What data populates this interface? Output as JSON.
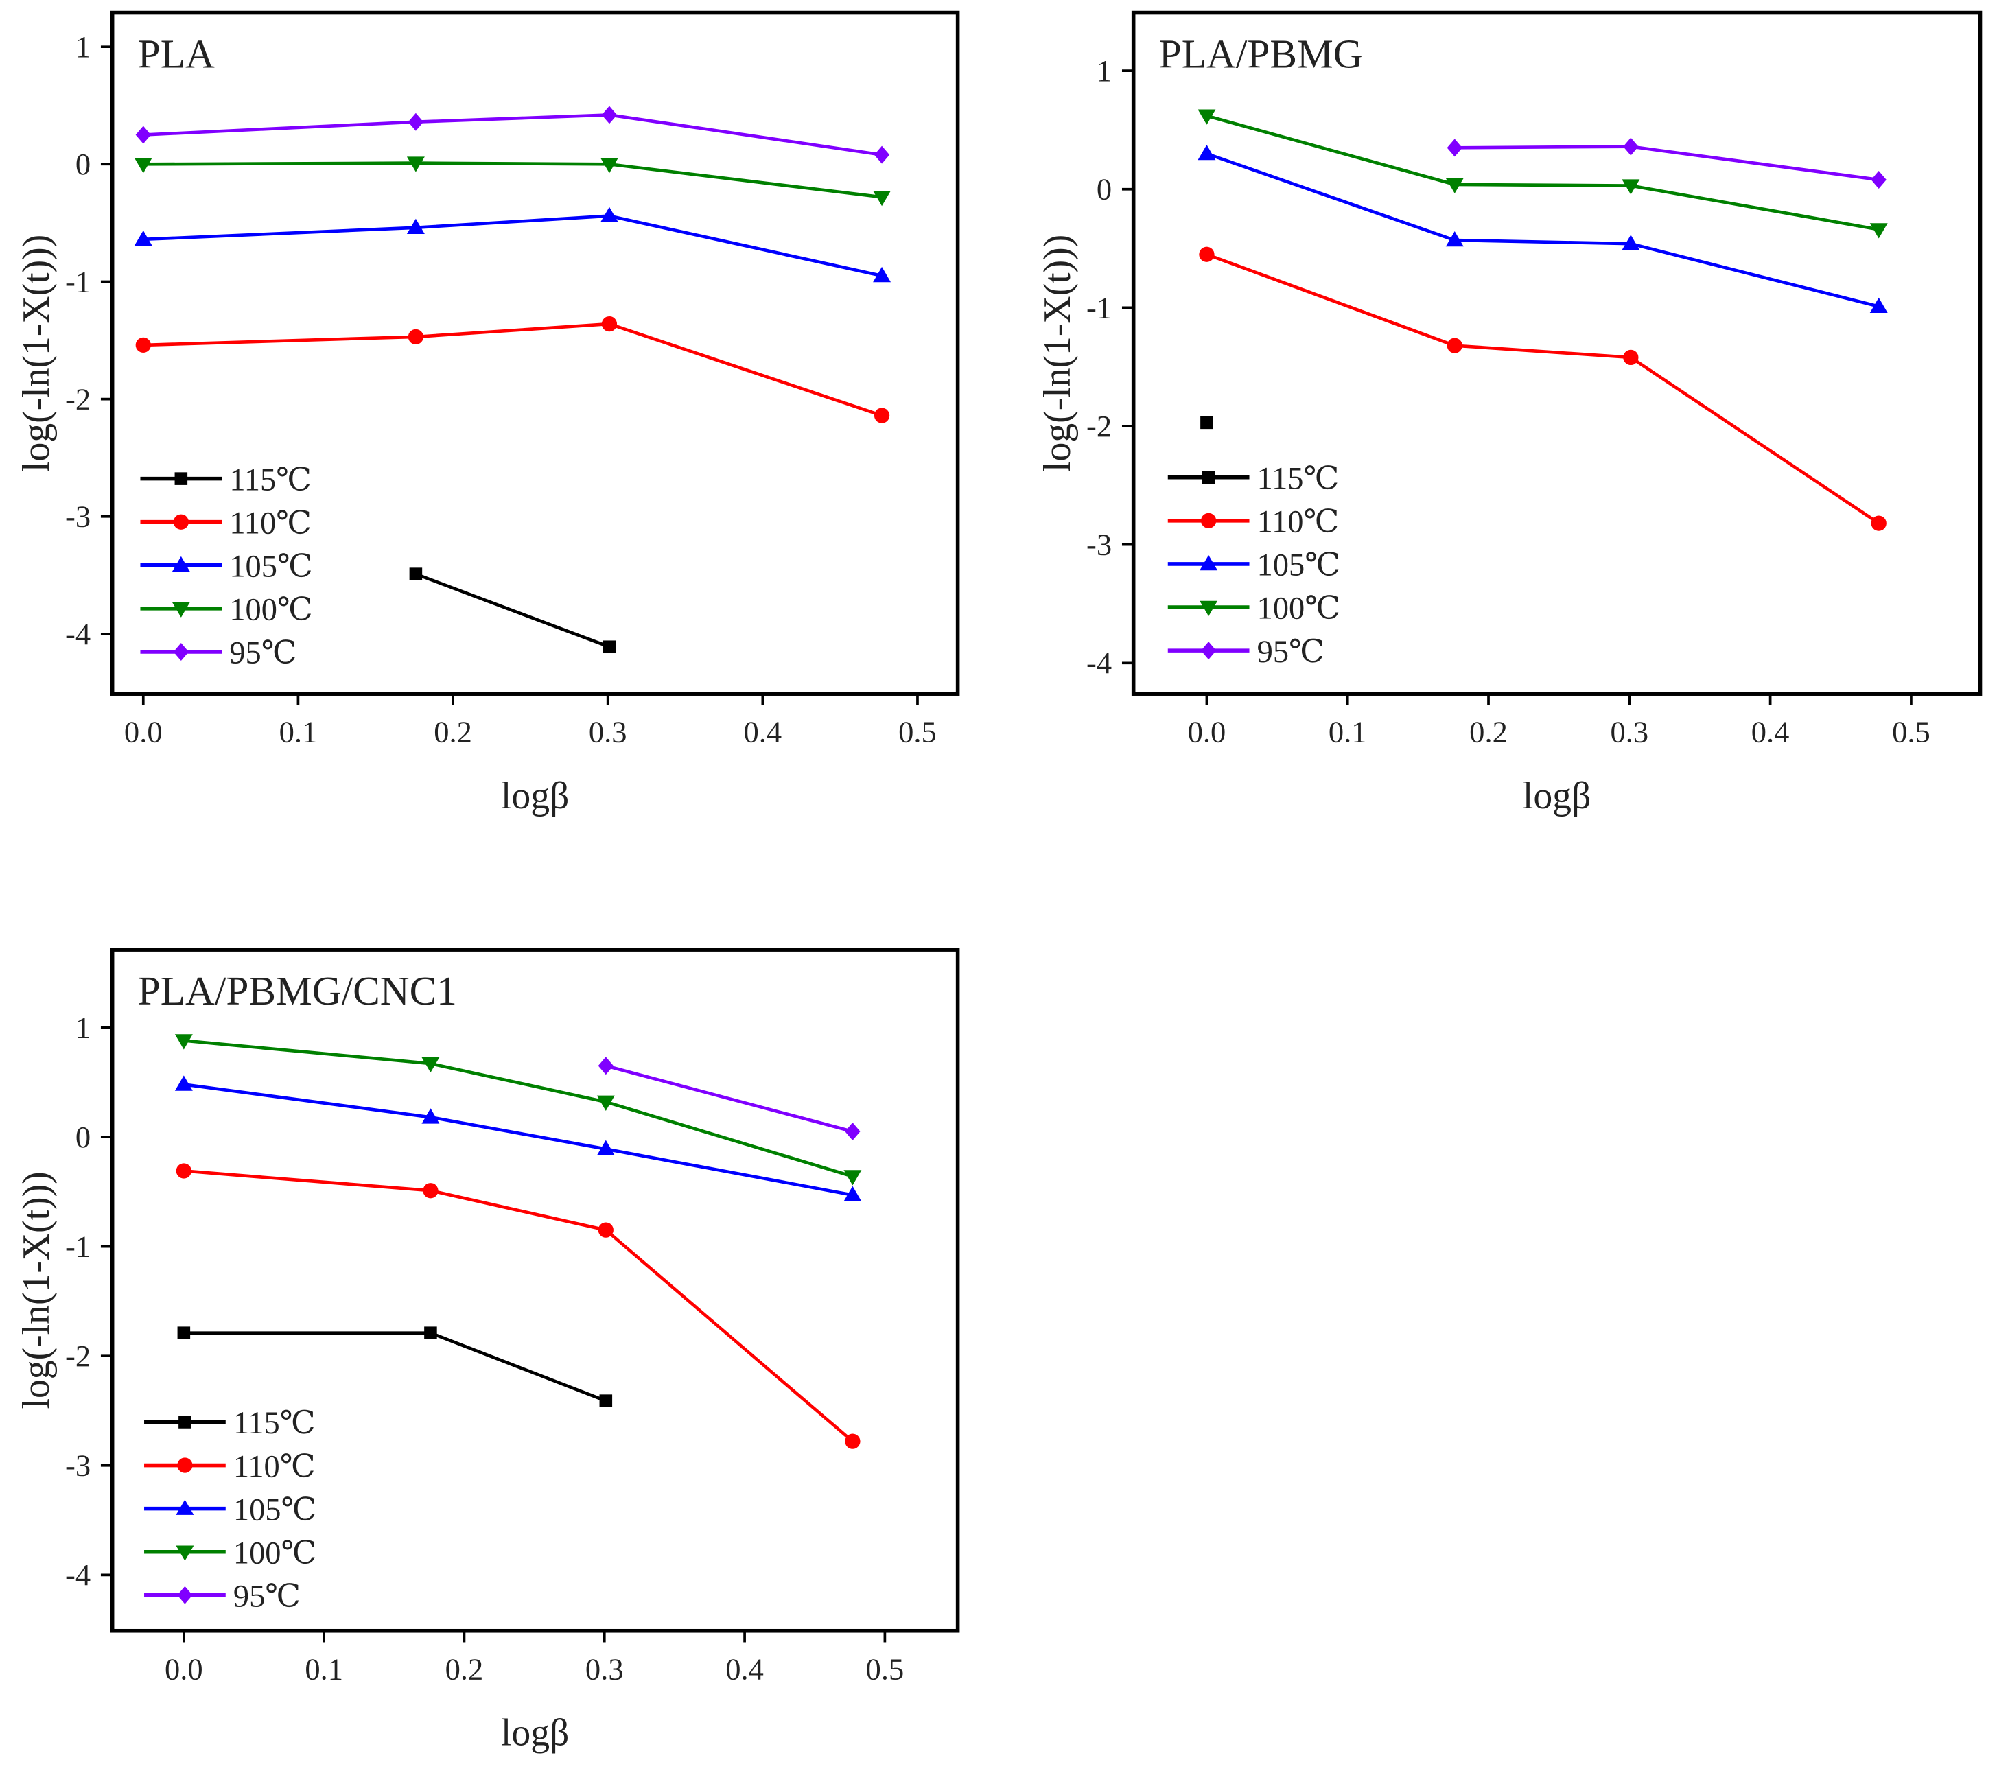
{
  "chart_data": [
    {
      "type": "line",
      "title": "PLA",
      "xlabel": "logβ",
      "ylabel": "log(-ln(1-X(t)))",
      "xlim": [
        -0.02,
        0.526
      ],
      "ylim": [
        -4.51,
        1.29
      ],
      "xticks": [
        0.0,
        0.1,
        0.2,
        0.3,
        0.4,
        0.5
      ],
      "xtick_labels": [
        "0.0",
        "0.1",
        "0.2",
        "0.3",
        "0.4",
        "0.5"
      ],
      "yticks": [
        1,
        0,
        -1,
        -2,
        -3,
        -4
      ],
      "ytick_labels": [
        "1",
        "0",
        "-1",
        "-2",
        "-3",
        "-4"
      ],
      "legend": "bottom-left",
      "grid": false,
      "series": [
        {
          "name": "115℃",
          "color": "#000000",
          "marker": "square",
          "x": [
            0.176,
            0.301
          ],
          "y": [
            -3.49,
            -4.11
          ]
        },
        {
          "name": "110℃",
          "color": "#ff0000",
          "marker": "circle",
          "x": [
            0,
            0.176,
            0.301,
            0.477
          ],
          "y": [
            -1.54,
            -1.47,
            -1.36,
            -2.14
          ]
        },
        {
          "name": "105℃",
          "color": "#0000ff",
          "marker": "triangle-up",
          "x": [
            0,
            0.176,
            0.301,
            0.477
          ],
          "y": [
            -0.64,
            -0.54,
            -0.44,
            -0.95
          ]
        },
        {
          "name": "100℃",
          "color": "#008000",
          "marker": "triangle-down",
          "x": [
            0,
            0.176,
            0.301,
            0.477
          ],
          "y": [
            0.0,
            0.01,
            0.0,
            -0.28
          ]
        },
        {
          "name": "95℃",
          "color": "#8000ff",
          "marker": "diamond",
          "x": [
            0,
            0.176,
            0.301,
            0.477
          ],
          "y": [
            0.25,
            0.36,
            0.42,
            0.08
          ]
        }
      ]
    },
    {
      "type": "line",
      "title": "PLA/PBMG",
      "xlabel": "logβ",
      "ylabel": "log(-ln(1-X(t)))",
      "xlim": [
        -0.052,
        0.549
      ],
      "ylim": [
        -4.26,
        1.49
      ],
      "xticks": [
        0.0,
        0.1,
        0.2,
        0.3,
        0.4,
        0.5
      ],
      "xtick_labels": [
        "0.0",
        "0.1",
        "0.2",
        "0.3",
        "0.4",
        "0.5"
      ],
      "yticks": [
        1,
        0,
        -1,
        -2,
        -3,
        -4
      ],
      "ytick_labels": [
        "1",
        "0",
        "-1",
        "-2",
        "-3",
        "-4"
      ],
      "legend": "bottom-left",
      "grid": false,
      "series": [
        {
          "name": "115℃",
          "color": "#000000",
          "marker": "square",
          "x": [
            0
          ],
          "y": [
            -1.97
          ]
        },
        {
          "name": "110℃",
          "color": "#ff0000",
          "marker": "circle",
          "x": [
            0,
            0.176,
            0.301,
            0.477
          ],
          "y": [
            -0.55,
            -1.32,
            -1.42,
            -2.82
          ]
        },
        {
          "name": "105℃",
          "color": "#0000ff",
          "marker": "triangle-up",
          "x": [
            0,
            0.176,
            0.301,
            0.477
          ],
          "y": [
            0.3,
            -0.43,
            -0.46,
            -0.99
          ]
        },
        {
          "name": "100℃",
          "color": "#008000",
          "marker": "triangle-down",
          "x": [
            0,
            0.176,
            0.301,
            0.477
          ],
          "y": [
            0.62,
            0.04,
            0.03,
            -0.34
          ]
        },
        {
          "name": "95℃",
          "color": "#8000ff",
          "marker": "diamond",
          "x": [
            0.176,
            0.301,
            0.477
          ],
          "y": [
            0.35,
            0.36,
            0.08
          ]
        }
      ]
    },
    {
      "type": "line",
      "title": "PLA/PBMG/CNC1",
      "xlabel": "logβ",
      "ylabel": "log(-ln(1-X(t)))",
      "xlim": [
        -0.051,
        0.552
      ],
      "ylim": [
        -4.51,
        1.71
      ],
      "xticks": [
        0.0,
        0.1,
        0.2,
        0.3,
        0.4,
        0.5
      ],
      "xtick_labels": [
        "0.0",
        "0.1",
        "0.2",
        "0.3",
        "0.4",
        "0.5"
      ],
      "yticks": [
        1,
        0,
        -1,
        -2,
        -3,
        -4
      ],
      "ytick_labels": [
        "1",
        "0",
        "-1",
        "-2",
        "-3",
        "-4"
      ],
      "legend": "bottom-left",
      "grid": false,
      "series": [
        {
          "name": "115℃",
          "color": "#000000",
          "marker": "square",
          "x": [
            0,
            0.176,
            0.301
          ],
          "y": [
            -1.79,
            -1.79,
            -2.41
          ]
        },
        {
          "name": "110℃",
          "color": "#ff0000",
          "marker": "circle",
          "x": [
            0,
            0.176,
            0.301,
            0.477
          ],
          "y": [
            -0.31,
            -0.49,
            -0.85,
            -2.78
          ]
        },
        {
          "name": "105℃",
          "color": "#0000ff",
          "marker": "triangle-up",
          "x": [
            0,
            0.176,
            0.301,
            0.477
          ],
          "y": [
            0.48,
            0.18,
            -0.11,
            -0.53
          ]
        },
        {
          "name": "100℃",
          "color": "#008000",
          "marker": "triangle-down",
          "x": [
            0,
            0.176,
            0.301,
            0.477
          ],
          "y": [
            0.88,
            0.67,
            0.32,
            -0.36
          ]
        },
        {
          "name": "95℃",
          "color": "#8000ff",
          "marker": "diamond",
          "x": [
            0.301,
            0.477
          ],
          "y": [
            0.65,
            0.05
          ]
        }
      ]
    }
  ]
}
